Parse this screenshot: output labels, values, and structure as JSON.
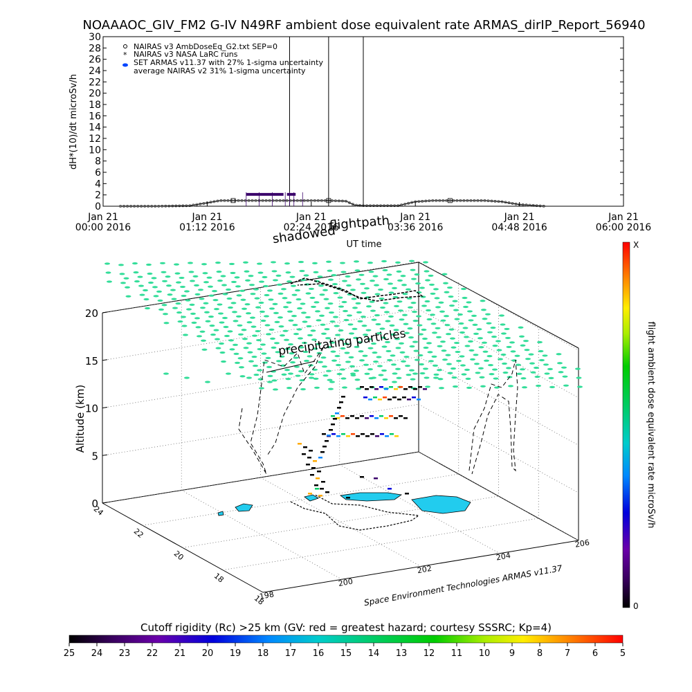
{
  "title": "NOAAAOC_GIV_FM2 G-IV   N49RF  ambient dose equivalent rate ARMAS_dirIP_Report_56940",
  "chart_data": [
    {
      "type": "line",
      "ylabel": "dH*(10)/dt microSv/h",
      "xlabel": "UT time",
      "ylim": [
        0,
        30
      ],
      "yticks": [
        "0",
        "2",
        "4",
        "6",
        "8",
        "10",
        "12",
        "14",
        "16",
        "18",
        "20",
        "22",
        "24",
        "26",
        "28",
        "30"
      ],
      "xticks": [
        {
          "l1": "Jan 21",
          "l2": "00:00 2016"
        },
        {
          "l1": "Jan 21",
          "l2": "01:12 2016"
        },
        {
          "l1": "Jan 21",
          "l2": "02:24 2016"
        },
        {
          "l1": "Jan 21",
          "l2": "03:36 2016"
        },
        {
          "l1": "Jan 21",
          "l2": "04:48 2016"
        },
        {
          "l1": "Jan 21",
          "l2": "06:00 2016"
        }
      ],
      "xlim_hours": [
        0,
        6
      ],
      "legend": [
        "NAIRAS v3 AmbDoseEq_G2.txt SEP=0",
        "NAIRAS v3 NASA LaRC runs",
        "SET ARMAS v11.37 with 27% 1-sigma uncertainty",
        "average NAIRAS v2 31% 1-sigma uncertainty"
      ],
      "series": [
        {
          "name": "NAIRAS v3 AmbDoseEq_G2.txt SEP=0",
          "x": [
            0.2,
            0.6,
            1.0,
            1.2,
            1.35,
            1.5,
            1.7,
            2.0,
            2.3,
            2.6,
            2.8,
            2.9,
            3.0,
            3.4,
            3.6,
            3.8,
            4.0,
            4.2,
            4.4,
            4.6,
            4.8,
            5.0,
            5.1
          ],
          "y": [
            0.0,
            0.0,
            0.1,
            0.6,
            1.0,
            1.0,
            1.0,
            1.0,
            1.0,
            1.0,
            0.9,
            0.2,
            0.1,
            0.1,
            0.8,
            1.0,
            1.0,
            1.0,
            1.0,
            0.8,
            0.3,
            0.1,
            0.0
          ]
        },
        {
          "name": "SET ARMAS v11.37 with 27% 1-sigma uncertainty",
          "x": [
            1.65,
            1.8,
            1.95,
            2.1,
            2.15,
            2.2,
            2.3
          ],
          "y": [
            2.1,
            2.1,
            2.1,
            2.1,
            2.1,
            2.1,
            2.1
          ]
        }
      ],
      "spikes_hours": [
        2.15,
        2.6,
        3.0
      ]
    },
    {
      "type": "scatter",
      "subtitle_path": "flightpath",
      "subtitle_shadow": "shadowed",
      "annotation": "precipitating particles",
      "zlabel": "Altitude (km)",
      "zticks": [
        "0",
        "5",
        "10",
        "15",
        "20"
      ],
      "lat_ticks": [
        "18",
        "18",
        "20",
        "22",
        "24"
      ],
      "lon_ticks": [
        "198",
        "200",
        "202",
        "204",
        "206"
      ],
      "credit": "Space Environment Technologies ARMAS v11.37",
      "colorbar_label": "flight ambient dose equivalent rate microSv/h",
      "colorbar_top": "X",
      "colorbar_bottom": "0"
    },
    {
      "type": "heatmap",
      "title": "Cutoff rigidity (Rc) >25 km (GV: red = greatest hazard; courtesy SSSRC; Kp=4)",
      "ticks": [
        "25",
        "24",
        "23",
        "22",
        "21",
        "20",
        "19",
        "18",
        "17",
        "16",
        "15",
        "14",
        "13",
        "12",
        "11",
        "10",
        "9",
        "8",
        "7",
        "6",
        "5"
      ]
    }
  ],
  "colors": {
    "grid_points": "#33dd99",
    "armas_series": "#3a006a",
    "blob": "#22ccee"
  }
}
